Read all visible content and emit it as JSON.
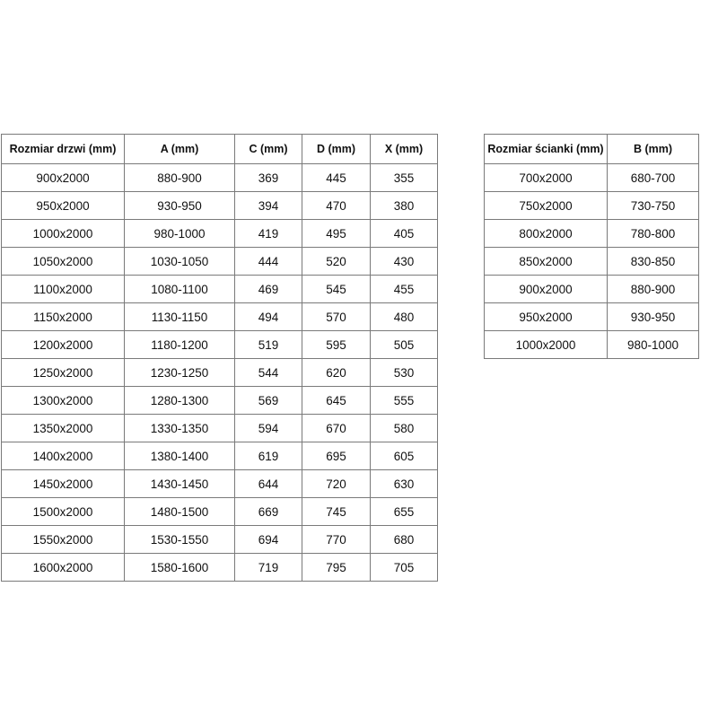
{
  "doors_table": {
    "headers": [
      "Rozmiar drzwi (mm)",
      "A (mm)",
      "C (mm)",
      "D (mm)",
      "X (mm)"
    ],
    "rows": [
      [
        "900x2000",
        "880-900",
        369,
        445,
        355
      ],
      [
        "950x2000",
        "930-950",
        394,
        470,
        380
      ],
      [
        "1000x2000",
        "980-1000",
        419,
        495,
        405
      ],
      [
        "1050x2000",
        "1030-1050",
        444,
        520,
        430
      ],
      [
        "1100x2000",
        "1080-1100",
        469,
        545,
        455
      ],
      [
        "1150x2000",
        "1130-1150",
        494,
        570,
        480
      ],
      [
        "1200x2000",
        "1180-1200",
        519,
        595,
        505
      ],
      [
        "1250x2000",
        "1230-1250",
        544,
        620,
        530
      ],
      [
        "1300x2000",
        "1280-1300",
        569,
        645,
        555
      ],
      [
        "1350x2000",
        "1330-1350",
        594,
        670,
        580
      ],
      [
        "1400x2000",
        "1380-1400",
        619,
        695,
        605
      ],
      [
        "1450x2000",
        "1430-1450",
        644,
        720,
        630
      ],
      [
        "1500x2000",
        "1480-1500",
        669,
        745,
        655
      ],
      [
        "1550x2000",
        "1530-1550",
        694,
        770,
        680
      ],
      [
        "1600x2000",
        "1580-1600",
        719,
        795,
        705
      ]
    ]
  },
  "walls_table": {
    "headers": [
      "Rozmiar ścianki (mm)",
      "B (mm)"
    ],
    "rows": [
      [
        "700x2000",
        "680-700"
      ],
      [
        "750x2000",
        "730-750"
      ],
      [
        "800x2000",
        "780-800"
      ],
      [
        "850x2000",
        "830-850"
      ],
      [
        "900x2000",
        "880-900"
      ],
      [
        "950x2000",
        "930-950"
      ],
      [
        "1000x2000",
        "980-1000"
      ]
    ]
  }
}
